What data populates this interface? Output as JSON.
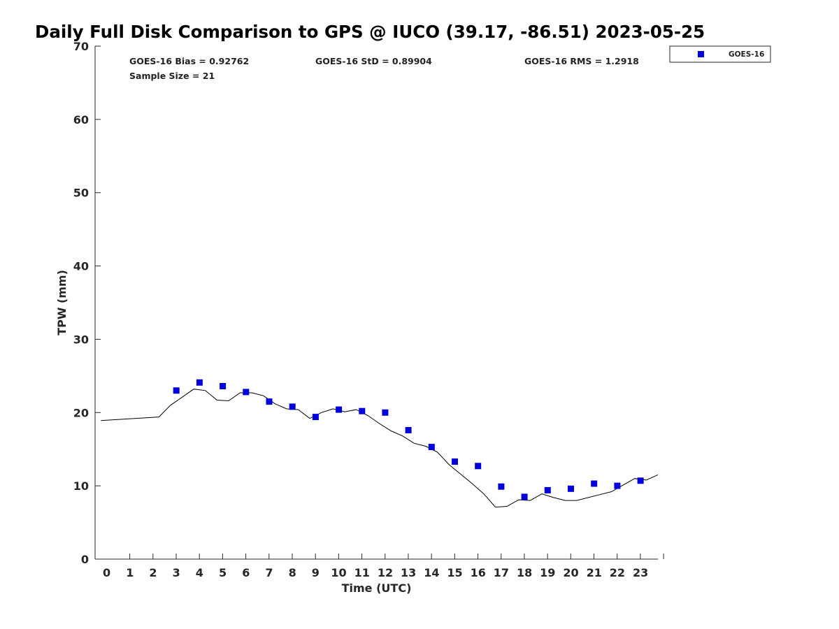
{
  "chart_data": {
    "type": "scatter",
    "title": "Daily Full Disk Comparison to GPS @ IUCO (39.17, -86.51) 2023-05-25",
    "xlabel": "Time (UTC)",
    "ylabel": "TPW (mm)",
    "xlim": [
      -0.5,
      23.75
    ],
    "ylim": [
      0,
      70
    ],
    "x_ticks": [
      0,
      1,
      2,
      3,
      4,
      5,
      6,
      7,
      8,
      9,
      10,
      11,
      12,
      13,
      14,
      15,
      16,
      17,
      18,
      19,
      20,
      21,
      22,
      23
    ],
    "y_ticks": [
      0,
      10,
      20,
      30,
      40,
      50,
      60,
      70
    ],
    "grid": false,
    "legend_position": "top-right outside",
    "stats": {
      "bias": "GOES-16 Bias = 0.92762",
      "std": "GOES-16 StD = 0.89904",
      "rms": "GOES-16 RMS = 1.2918",
      "sample": "Sample Size = 21"
    },
    "series": [
      {
        "name": "GOES-16",
        "type": "scatter",
        "marker": "square",
        "color": "#0000dd",
        "x": [
          3,
          4,
          5,
          6,
          7,
          8,
          9,
          10,
          11,
          12,
          13,
          14,
          15,
          16,
          17,
          18,
          19,
          20,
          21,
          22,
          23
        ],
        "y": [
          23.0,
          24.1,
          23.6,
          22.8,
          21.5,
          20.8,
          19.4,
          20.4,
          20.2,
          20.0,
          17.6,
          15.3,
          13.3,
          12.7,
          9.9,
          8.5,
          9.4,
          9.6,
          10.3,
          10.0,
          10.7
        ]
      },
      {
        "type": "line",
        "color": "#000000",
        "x": [
          -0.25,
          2.25,
          2.75,
          3.25,
          3.75,
          4.25,
          4.75,
          5.25,
          5.75,
          6.25,
          6.75,
          7.25,
          7.75,
          8.25,
          8.75,
          9.25,
          9.75,
          10.25,
          10.75,
          11.25,
          11.75,
          12.25,
          12.75,
          13.25,
          13.75,
          14.25,
          14.75,
          15.25,
          15.75,
          16.25,
          16.75,
          17.25,
          17.75,
          18.25,
          18.75,
          19.25,
          19.75,
          20.25,
          20.75,
          21.25,
          21.75,
          22.25,
          22.75,
          23.25,
          23.75
        ],
        "y": [
          18.9,
          19.4,
          21.0,
          22.1,
          23.2,
          23.0,
          21.7,
          21.6,
          22.7,
          22.7,
          22.3,
          21.2,
          20.5,
          20.4,
          19.2,
          20.0,
          20.5,
          20.1,
          20.4,
          19.6,
          18.5,
          17.5,
          16.8,
          15.8,
          15.4,
          14.6,
          12.9,
          11.6,
          10.3,
          8.9,
          7.1,
          7.2,
          8.1,
          8.0,
          8.9,
          8.4,
          8.0,
          8.0,
          8.4,
          8.8,
          9.2,
          10.1,
          11.0,
          10.8,
          11.5
        ]
      }
    ]
  }
}
